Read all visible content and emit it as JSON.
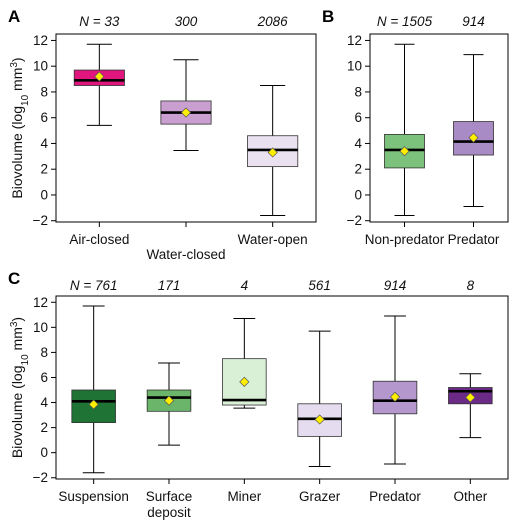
{
  "chart_data": [
    {
      "panel": "A",
      "type": "box",
      "ylabel": "Biovolume (log10 mm3)",
      "ylabel_parts": {
        "base": "Biovolume (log",
        "sub": "10",
        "unit": " mm",
        "sup": "3",
        "close": ")"
      },
      "ylim": [
        -2.1,
        12.5
      ],
      "yticks": [
        -2,
        0,
        2,
        4,
        6,
        8,
        10,
        12
      ],
      "n_prefix": "N = ",
      "categories": [
        {
          "label": "Air-closed",
          "n": "33",
          "min": 5.4,
          "q1": 8.5,
          "median": 8.9,
          "q3": 9.7,
          "max": 11.7,
          "mean": 9.2,
          "color": "#e0157d",
          "label_row": 1
        },
        {
          "label": "Water-closed",
          "n": "300",
          "min": 3.45,
          "q1": 5.5,
          "median": 6.4,
          "q3": 7.3,
          "max": 10.5,
          "mean": 6.4,
          "color": "#c99fcf",
          "label_row": 2
        },
        {
          "label": "Water-open",
          "n": "2086",
          "min": -1.6,
          "q1": 2.2,
          "median": 3.5,
          "q3": 4.6,
          "max": 8.5,
          "mean": 3.3,
          "color": "#e9e1f0",
          "label_row": 1
        }
      ]
    },
    {
      "panel": "B",
      "type": "box",
      "ylim": [
        -2.1,
        12.5
      ],
      "yticks": [
        -2,
        0,
        2,
        4,
        6,
        8,
        10,
        12
      ],
      "n_prefix": "N = ",
      "categories": [
        {
          "label": "Non-predator",
          "n": "1505",
          "min": -1.6,
          "q1": 2.1,
          "median": 3.5,
          "q3": 4.7,
          "max": 11.7,
          "mean": 3.4,
          "color": "#7cc27c",
          "label_row": 1
        },
        {
          "label": "Predator",
          "n": "914",
          "min": -0.9,
          "q1": 3.1,
          "median": 4.15,
          "q3": 5.7,
          "max": 10.9,
          "mean": 4.45,
          "color": "#a88ac5",
          "label_row": 1
        }
      ]
    },
    {
      "panel": "C",
      "type": "box",
      "ylabel": "Biovolume (log10 mm3)",
      "ylabel_parts": {
        "base": "Biovolume (log",
        "sub": "10",
        "unit": " mm",
        "sup": "3",
        "close": ")"
      },
      "ylim": [
        -2.1,
        12.5
      ],
      "yticks": [
        -2,
        0,
        2,
        4,
        6,
        8,
        10,
        12
      ],
      "n_prefix": "N = ",
      "categories": [
        {
          "label": "Suspension",
          "n": "761",
          "min": -1.6,
          "q1": 2.4,
          "median": 4.1,
          "q3": 5.0,
          "max": 11.7,
          "mean": 3.85,
          "color": "#1e7335",
          "label_row": 1
        },
        {
          "label": "Surface deposit",
          "lines": [
            "Surface",
            "deposit"
          ],
          "n": "171",
          "min": 0.6,
          "q1": 3.3,
          "median": 4.4,
          "q3": 5.0,
          "max": 7.15,
          "mean": 4.15,
          "color": "#6ab56a",
          "label_row": 1
        },
        {
          "label": "Miner",
          "n": "4",
          "min": 3.55,
          "q1": 3.8,
          "median": 4.2,
          "q3": 7.5,
          "max": 10.7,
          "mean": 5.65,
          "color": "#d9efd6",
          "label_row": 1
        },
        {
          "label": "Grazer",
          "n": "561",
          "min": -1.1,
          "q1": 1.3,
          "median": 2.7,
          "q3": 3.9,
          "max": 9.7,
          "mean": 2.65,
          "color": "#e5dcef",
          "label_row": 1
        },
        {
          "label": "Predator",
          "n": "914",
          "min": -0.9,
          "q1": 3.1,
          "median": 4.15,
          "q3": 5.7,
          "max": 10.9,
          "mean": 4.45,
          "color": "#b497cc",
          "label_row": 1
        },
        {
          "label": "Other",
          "n": "8",
          "min": 1.2,
          "q1": 3.9,
          "median": 4.9,
          "q3": 5.2,
          "max": 6.3,
          "mean": 4.4,
          "color": "#6a2a86",
          "label_row": 1
        }
      ]
    }
  ],
  "style": {
    "mean_marker_color": "#ffee00",
    "median_color": "#000000",
    "axis_color": "#000000"
  }
}
